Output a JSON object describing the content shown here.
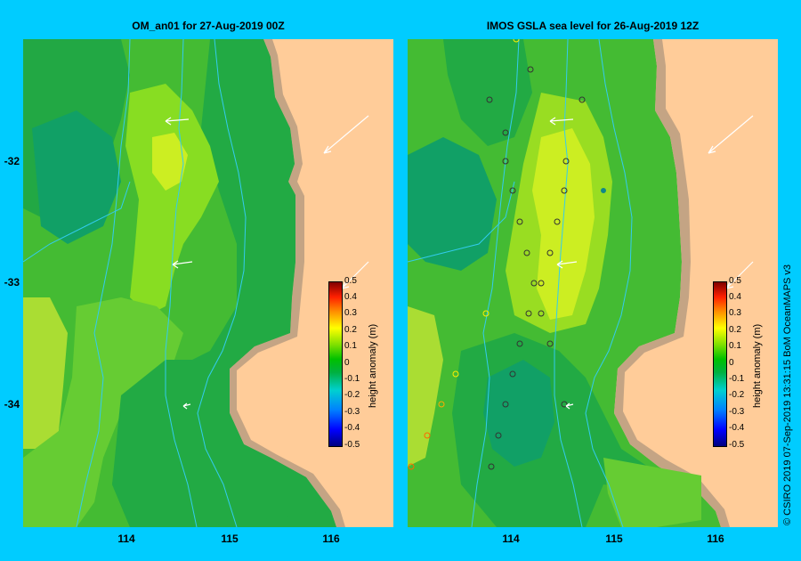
{
  "left_map": {
    "title": "OM_an01  for 27-Aug-2019 00Z"
  },
  "right_map": {
    "title": "IMOS GSLA sea level  for 26-Aug-2019 12Z"
  },
  "axes": {
    "y_labels": [
      "-32",
      "-33",
      "-34"
    ],
    "x_labels": [
      "114",
      "115",
      "116"
    ],
    "x_labels_right": [
      "114",
      "115",
      "116"
    ]
  },
  "colorbar": {
    "label": "height anomaly (m)",
    "ticks": [
      "0.5",
      "0.4",
      "0.3",
      "0.2",
      "0.1",
      "0",
      "-0.1",
      "-0.2",
      "-0.3",
      "-0.4",
      "-0.5"
    ]
  },
  "credit": "© CSIRO 2019   07-Sep-2019 13:31:15 BoM OceanMAPS v3",
  "colors": {
    "frame": "#00ccff",
    "land": "#ffcc99",
    "shelf": "#c4a484",
    "contour": "#33ccee"
  }
}
